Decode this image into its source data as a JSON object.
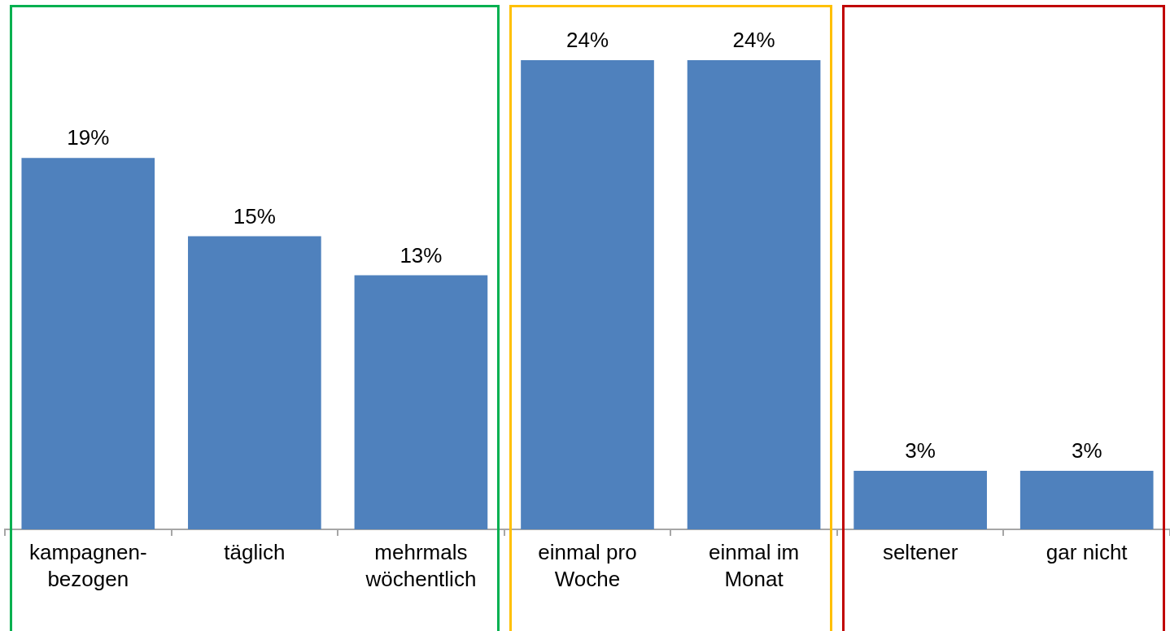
{
  "chart_data": {
    "type": "bar",
    "categories": [
      "kampagnen-bezogen",
      "täglich",
      "mehrmals wöchentlich",
      "einmal pro Woche",
      "einmal im Monat",
      "seltener",
      "gar nicht"
    ],
    "values": [
      19,
      15,
      13,
      24,
      24,
      3,
      3
    ],
    "value_labels": [
      "19%",
      "15%",
      "13%",
      "24%",
      "24%",
      "3%",
      "3%"
    ],
    "color": "#4f81bd",
    "grid": false,
    "legend": false
  }
}
